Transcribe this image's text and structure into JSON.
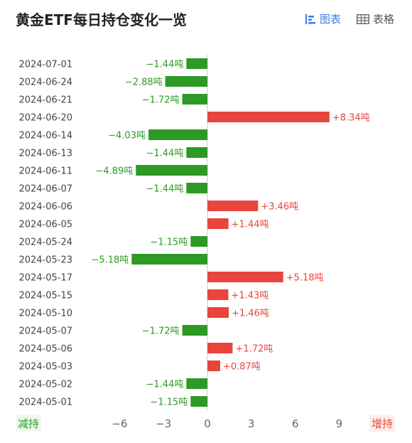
{
  "header": {
    "title": "黄金ETF每日持仓变化一览",
    "chart_toggle_label": "图表",
    "table_toggle_label": "表格"
  },
  "legend": {
    "decrease_label": "减持",
    "increase_label": "增持"
  },
  "colors": {
    "positive": "#e8453c",
    "negative": "#2e9a25",
    "active_tab": "#3b7be8"
  },
  "chart_data": {
    "type": "bar",
    "orientation": "horizontal",
    "unit": "吨",
    "categories": [
      "2024-07-01",
      "2024-06-24",
      "2024-06-21",
      "2024-06-20",
      "2024-06-14",
      "2024-06-13",
      "2024-06-11",
      "2024-06-07",
      "2024-06-06",
      "2024-06-05",
      "2024-05-24",
      "2024-05-23",
      "2024-05-17",
      "2024-05-15",
      "2024-05-10",
      "2024-05-07",
      "2024-05-06",
      "2024-05-03",
      "2024-05-02",
      "2024-05-01"
    ],
    "values": [
      -1.44,
      -2.88,
      -1.72,
      8.34,
      -4.03,
      -1.44,
      -4.89,
      -1.44,
      3.46,
      1.44,
      -1.15,
      -5.18,
      5.18,
      1.43,
      1.46,
      -1.72,
      1.72,
      0.87,
      -1.44,
      -1.15
    ],
    "labels": [
      "−1.44吨",
      "−2.88吨",
      "−1.72吨",
      "+8.34吨",
      "−4.03吨",
      "−1.44吨",
      "−4.89吨",
      "−1.44吨",
      "+3.46吨",
      "+1.44吨",
      "−1.15吨",
      "−5.18吨",
      "+5.18吨",
      "+1.43吨",
      "+1.46吨",
      "−1.72吨",
      "+1.72吨",
      "+0.87吨",
      "−1.44吨",
      "−1.15吨"
    ],
    "xticks": [
      -6,
      -3,
      0,
      3,
      6,
      9
    ],
    "xtick_labels": [
      "−6",
      "−3",
      "0",
      "3",
      "6",
      "9"
    ],
    "xlim": [
      -6.8,
      10.5
    ],
    "grid": false
  }
}
